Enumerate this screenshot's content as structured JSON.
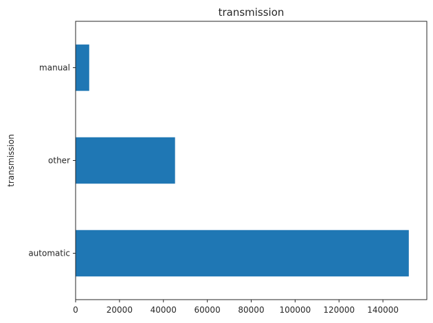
{
  "chart_data": {
    "type": "bar",
    "orientation": "horizontal",
    "title": "transmission",
    "ylabel": "transmission",
    "xlabel": "",
    "categories": [
      "automatic",
      "other",
      "manual"
    ],
    "values": [
      151800,
      45300,
      6200
    ],
    "xlim": [
      0,
      160000
    ],
    "xticks": [
      0,
      20000,
      40000,
      60000,
      80000,
      100000,
      120000,
      140000
    ],
    "grid": false,
    "legend": "none",
    "bar_color": "#1f77b4"
  }
}
